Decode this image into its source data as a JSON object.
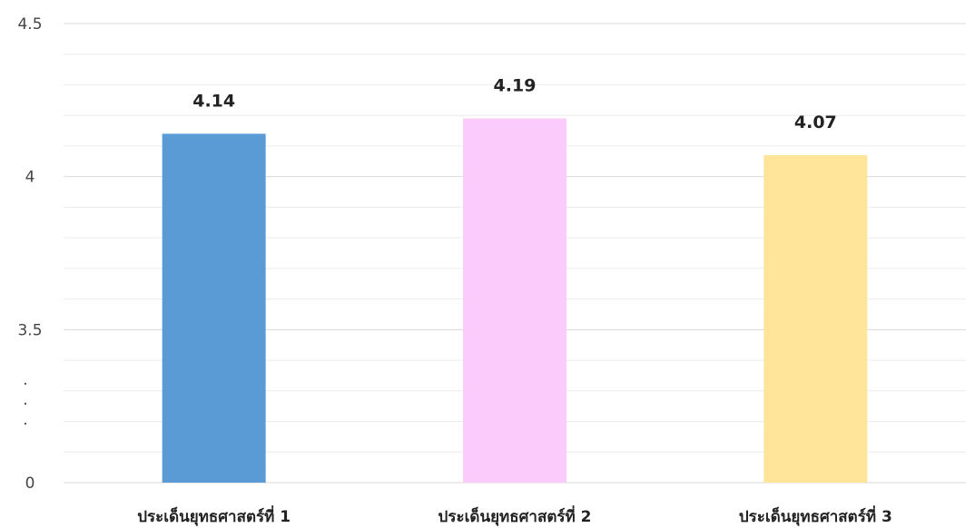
{
  "chart_data": {
    "type": "bar",
    "categories": [
      "ประเด็นยุทธศาสตร์ที่ 1",
      "ประเด็นยุทธศาสตร์ที่ 2",
      "ประเด็นยุทธศาสตร์ที่ 3"
    ],
    "values": [
      4.14,
      4.19,
      4.07
    ],
    "data_labels": [
      "4.14",
      "4.19",
      "4.07"
    ],
    "colors": [
      "#5b9bd5",
      "#fbcbfc",
      "#fee599"
    ],
    "y_ticks": [
      "0",
      "3.5",
      "4",
      "4.5"
    ],
    "axis_break_marker": ". . .",
    "ylim": [
      3,
      4.5
    ],
    "axis_break": true,
    "grid": true,
    "legend": "none",
    "title": "",
    "xlabel": "",
    "ylabel": ""
  }
}
